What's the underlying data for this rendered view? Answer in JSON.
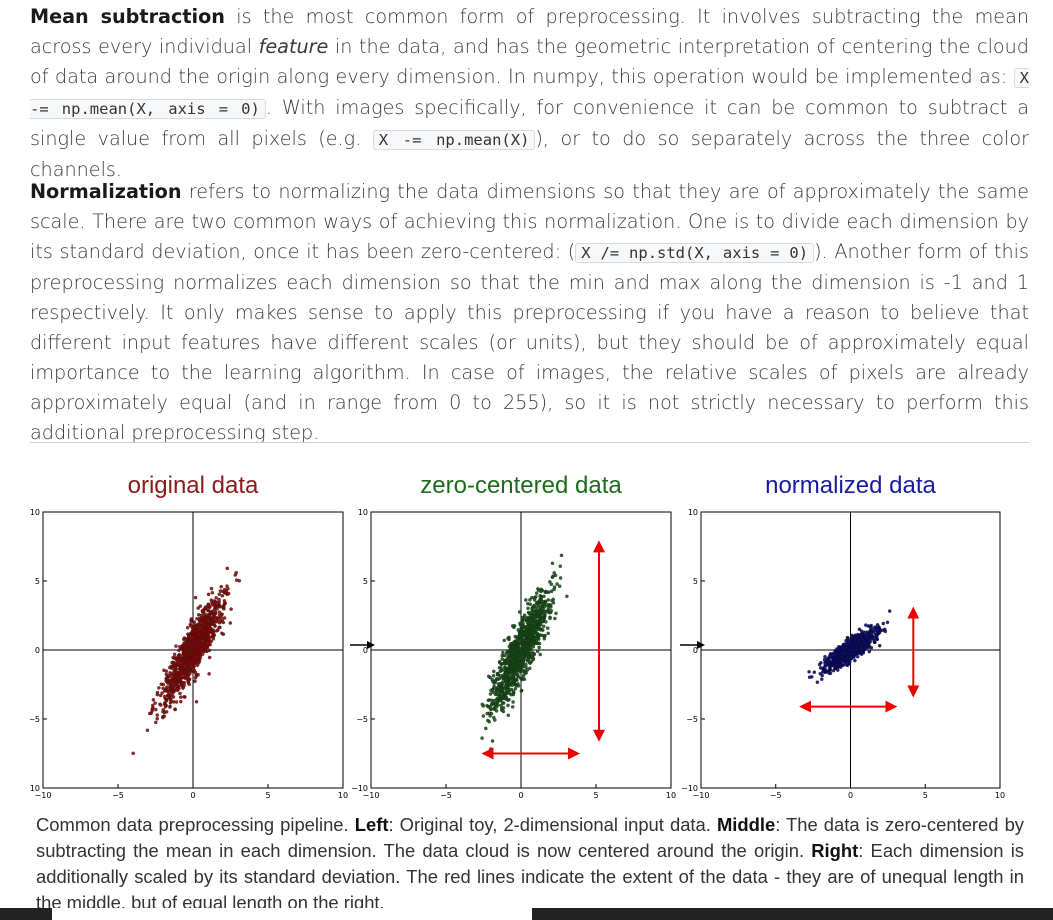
{
  "p1": {
    "term": "Mean subtraction",
    "t1": " is the most common form of preprocessing. It involves subtracting the mean across every individual ",
    "em": "feature",
    "t2": " in the data, and has the geometric interpretation of centering the cloud of data around the origin along every dimension. In numpy, this operation would be implemented as: ",
    "code1": "X -= np.mean(X, axis = 0)",
    "t3": ". With images specifically, for convenience it can be common to subtract a single value from all pixels (e.g. ",
    "code2": "X -= np.mean(X)",
    "t4": "), or to do so separately across the three color channels."
  },
  "p2": {
    "term": "Normalization",
    "t1": " refers to normalizing the data dimensions so that they are of approximately the same scale. There are two common ways of achieving this normalization. One is to divide each dimension by its standard deviation, once it has been zero-centered: (",
    "code1": "X /= np.std(X, axis = 0)",
    "t2": "). Another form of this preprocessing normalizes each dimension so that the min and max along the dimension is -1 and 1 respectively. It only makes sense to apply this preprocessing if you have a reason to believe that different input features have different scales (or units), but they should be of approximately equal importance to the learning algorithm. In case of images, the relative scales of pixels are already approximately equal (and in range from 0 to 255), so it is not strictly necessary to perform this additional preprocessing step."
  },
  "chart_data": [
    {
      "type": "scatter",
      "title": "original data",
      "title_color": "#8b1a1a",
      "point_color": "#8b0000",
      "xlim": [
        -10,
        10
      ],
      "ylim": [
        -10,
        10
      ],
      "xticks": [
        -10,
        -5,
        0,
        5,
        10
      ],
      "yticks": [
        -10,
        -5,
        0,
        5,
        10
      ],
      "cloud": {
        "center": [
          0,
          0
        ],
        "sd_major": 2.1,
        "sd_minor": 0.45,
        "angle_deg": 63.4,
        "n": 1000
      },
      "arrows": []
    },
    {
      "type": "scatter",
      "title": "zero-centered data",
      "title_color": "#1e6b1e",
      "point_color": "#0f4d0f",
      "xlim": [
        -10,
        10
      ],
      "ylim": [
        -10,
        10
      ],
      "xticks": [
        -10,
        -5,
        0,
        5,
        10
      ],
      "yticks": [
        -10,
        -5,
        0,
        5,
        10
      ],
      "cloud": {
        "center": [
          0,
          0
        ],
        "sd_major": 2.3,
        "sd_minor": 0.45,
        "angle_deg": 67,
        "n": 1000
      },
      "arrows": [
        {
          "from": [
            -2.5,
            -7.5
          ],
          "to": [
            3.8,
            -7.5
          ]
        },
        {
          "from": [
            5.2,
            -6.5
          ],
          "to": [
            5.2,
            7.8
          ]
        }
      ]
    },
    {
      "type": "scatter",
      "title": "normalized data",
      "title_color": "#1a1aa0",
      "point_color": "#00006b",
      "xlim": [
        -10,
        10
      ],
      "ylim": [
        -10,
        10
      ],
      "xticks": [
        -10,
        -5,
        0,
        5,
        10
      ],
      "yticks": [
        -10,
        -5,
        0,
        5,
        10
      ],
      "cloud": {
        "center": [
          0,
          0
        ],
        "sd_major": 1.05,
        "sd_minor": 0.28,
        "angle_deg": 38,
        "n": 1000
      },
      "arrows": [
        {
          "from": [
            -3.3,
            -4.1
          ],
          "to": [
            3.0,
            -4.1
          ]
        },
        {
          "from": [
            4.2,
            -3.3
          ],
          "to": [
            4.2,
            3.0
          ]
        }
      ]
    }
  ],
  "caption": {
    "t0": "Common data preprocessing pipeline. ",
    "left_label": "Left",
    "t1": ": Original toy, 2-dimensional input data. ",
    "middle_label": "Middle",
    "t2": ": The data is zero-centered by subtracting the mean in each dimension. The data cloud is now centered around the origin. ",
    "right_label": "Right",
    "t3": ": Each dimension is additionally scaled by its standard deviation. The red lines indicate the extent of the data - they are of unequal length in the middle, but of equal length on the right."
  },
  "colors": {
    "arrow_red": "#ee0000",
    "flow_arrow": "#000000",
    "axis_line": "#000000"
  }
}
